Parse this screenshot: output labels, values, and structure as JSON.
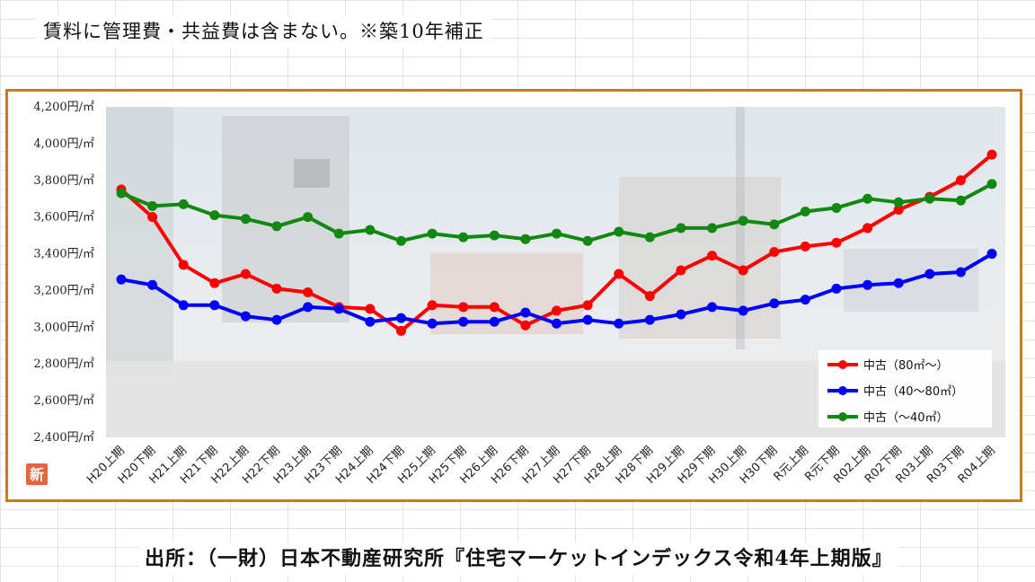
{
  "header": {
    "note": "賃料に管理費・共益費は含まない。※築10年補正"
  },
  "footer": {
    "source": "出所：（一財）日本不動産研究所『住宅マーケットインデックス令和4年上期版』"
  },
  "badge": {
    "text": "新",
    "color": "#e4663a"
  },
  "colors": {
    "frame": "#cc7a1e",
    "red": "#ff0000",
    "blue": "#0000ff",
    "green": "#118811"
  },
  "chart_data": {
    "type": "line",
    "title": "",
    "xlabel": "",
    "ylabel": "",
    "ylim": [
      2400,
      4200
    ],
    "y_ticks": [
      {
        "value": 4200,
        "label": "4,200円/㎡"
      },
      {
        "value": 4000,
        "label": "4,000円/㎡"
      },
      {
        "value": 3800,
        "label": "3,800円/㎡"
      },
      {
        "value": 3600,
        "label": "3,600円/㎡"
      },
      {
        "value": 3400,
        "label": "3,400円/㎡"
      },
      {
        "value": 3200,
        "label": "3,200円/㎡"
      },
      {
        "value": 3000,
        "label": "3,000円/㎡"
      },
      {
        "value": 2800,
        "label": "2,800円/㎡"
      },
      {
        "value": 2600,
        "label": "2,600円/㎡"
      },
      {
        "value": 2400,
        "label": "2,400円/㎡"
      }
    ],
    "categories": [
      "H20上期",
      "H20下期",
      "H21上期",
      "H21下期",
      "H22上期",
      "H22下期",
      "H23上期",
      "H23下期",
      "H24上期",
      "H24下期",
      "H25上期",
      "H25下期",
      "H26上期",
      "H26下期",
      "H27上期",
      "H27下期",
      "H28上期",
      "H28下期",
      "H29上期",
      "H29下期",
      "H30上期",
      "H30下期",
      "R元上期",
      "R元下期",
      "R02上期",
      "R02下期",
      "R03上期",
      "R03下期",
      "R04上期"
    ],
    "grid": false,
    "legend_position": "bottom-right",
    "series": [
      {
        "name": "中古（80㎡～）",
        "color": "#ff0000",
        "values": [
          3750,
          3600,
          3340,
          3240,
          3290,
          3210,
          3190,
          3110,
          3100,
          2980,
          3120,
          3110,
          3110,
          3010,
          3090,
          3120,
          3290,
          3170,
          3310,
          3390,
          3310,
          3410,
          3440,
          3460,
          3540,
          3640,
          3710,
          3800,
          3940
        ]
      },
      {
        "name": "中古（40～80㎡）",
        "color": "#0000ff",
        "values": [
          3260,
          3230,
          3120,
          3120,
          3060,
          3040,
          3110,
          3100,
          3030,
          3050,
          3020,
          3030,
          3030,
          3080,
          3020,
          3040,
          3020,
          3040,
          3070,
          3110,
          3090,
          3130,
          3150,
          3210,
          3230,
          3240,
          3290,
          3300,
          3400
        ]
      },
      {
        "name": "中古（～40㎡）",
        "color": "#118811",
        "values": [
          3730,
          3660,
          3670,
          3610,
          3590,
          3550,
          3600,
          3510,
          3530,
          3470,
          3510,
          3490,
          3500,
          3480,
          3510,
          3470,
          3520,
          3490,
          3540,
          3540,
          3580,
          3560,
          3630,
          3650,
          3700,
          3680,
          3700,
          3690,
          3780
        ]
      }
    ]
  }
}
